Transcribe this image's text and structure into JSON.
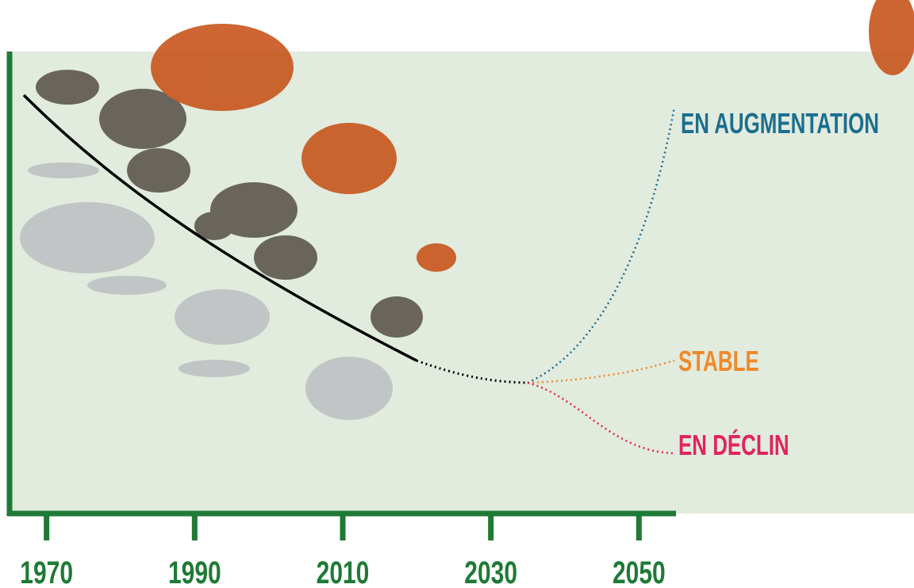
{
  "chart_data": {
    "type": "line",
    "xlim": [
      1965,
      2055
    ],
    "xticks": [
      1970,
      1990,
      2010,
      2030,
      2050
    ],
    "annotations": [
      {
        "text": "EN AUGMENTATION",
        "color": "#1b6f8f"
      },
      {
        "text": "STABLE",
        "color": "#f0892b"
      },
      {
        "text": "EN DÉCLIN",
        "color": "#e0245e"
      }
    ],
    "axis_color": "#1f7a36"
  }
}
